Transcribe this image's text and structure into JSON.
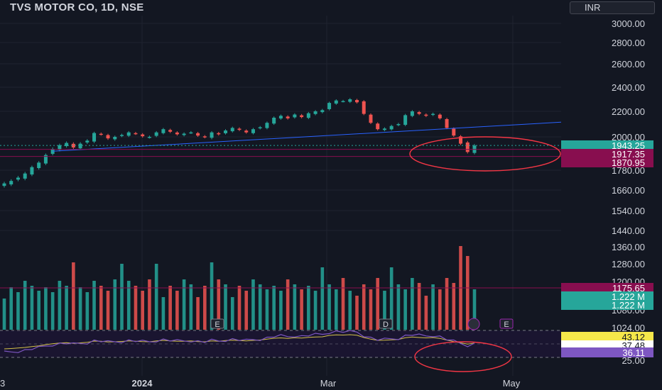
{
  "header": {
    "title": "TVS MOTOR CO, 1D, NSE",
    "currency": "INR"
  },
  "colors": {
    "up": "#26a69a",
    "down": "#ef5350",
    "bg": "#131722",
    "trendline": "#2962ff",
    "annotation": "#f23645",
    "rsi_line": "#7e57c2",
    "rsi_ma": "#d4c24a",
    "hline": "#880e4f"
  },
  "price_axis": {
    "ticks": [
      "3000.00",
      "2800.00",
      "2600.00",
      "2400.00",
      "2200.00",
      "2000.00",
      "1780.00",
      "1660.00",
      "1540.00",
      "1440.00",
      "1360.00",
      "1280.00",
      "1200.00",
      "1080.00",
      "1024.00",
      "25.00"
    ]
  },
  "badges": {
    "price_current": "1943.25",
    "price_hline_1": "1917.35",
    "price_hline_2": "1870.95",
    "volume_level": "1175.65",
    "volume_1": "1.222 M",
    "volume_2": "1.222 M",
    "rsi_1": "43.12",
    "rsi_2": "37.48",
    "rsi_3": "36.11"
  },
  "time_axis": {
    "labels": [
      "3",
      "2024",
      "Mar",
      "May"
    ]
  },
  "events": [
    "E",
    "D",
    "E"
  ],
  "chart_data": {
    "type": "candlestick",
    "title": "TVS MOTOR CO, 1D, NSE",
    "x_labels": [
      "2024",
      "Mar",
      "May"
    ],
    "candles_close_approx": [
      1700,
      1715,
      1735,
      1760,
      1800,
      1830,
      1880,
      1920,
      1945,
      1960,
      1930,
      1955,
      1975,
      2030,
      2020,
      1990,
      2000,
      2015,
      2035,
      2025,
      2005,
      2000,
      2035,
      2060,
      2040,
      2020,
      2025,
      2035,
      2010,
      2000,
      2035,
      2020,
      2050,
      2070,
      2055,
      2035,
      2060,
      2075,
      2110,
      2150,
      2165,
      2145,
      2175,
      2155,
      2185,
      2200,
      2210,
      2270,
      2290,
      2285,
      2300,
      2275,
      2180,
      2110,
      2060,
      2065,
      2085,
      2100,
      2170,
      2200,
      2180,
      2165,
      2180,
      2145,
      2070,
      2010,
      1955,
      1900,
      1943
    ],
    "trendline": {
      "from": {
        "index": 7,
        "price": 1905
      },
      "to": {
        "index": 99,
        "price": 2115
      }
    },
    "horizontal_levels": [
      1917.35,
      1870.95
    ],
    "last_price": 1943.25,
    "volume_last": "1.222 M",
    "rsi": {
      "value": 36.11,
      "ma": 37.48,
      "level": 43.12
    }
  }
}
